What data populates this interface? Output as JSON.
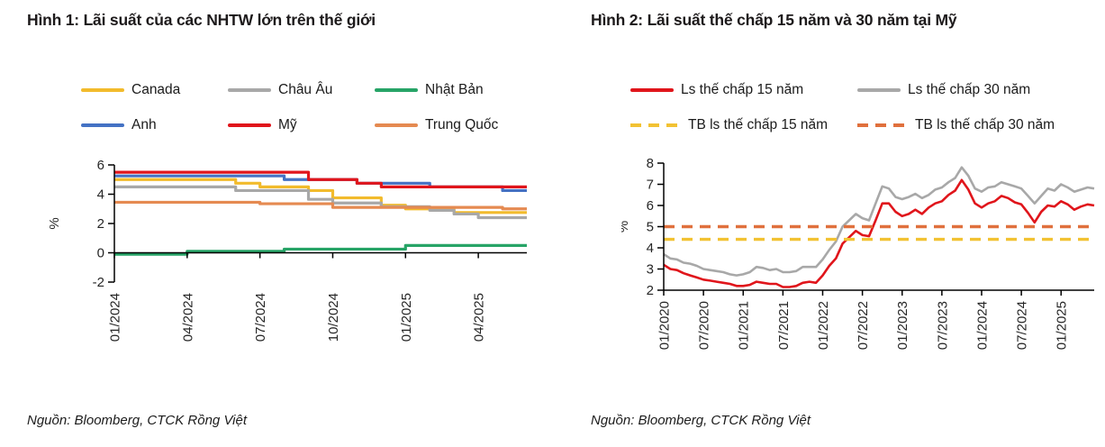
{
  "figures": [
    {
      "title": "Hình 1: Lãi suất của các NHTW lớn trên thế giới",
      "source": "Nguồn: Bloomberg, CTCK Rồng Việt"
    },
    {
      "title": "Hình 2: Lãi suất thế chấp 15 năm và 30 năm tại Mỹ",
      "source": "Nguồn: Bloomberg,  CTCK Rồng Việt"
    }
  ],
  "colors": {
    "canada": "#f2bb2c",
    "europe": "#a8a8a8",
    "japan": "#27a467",
    "uk": "#4472c4",
    "us": "#e0151b",
    "china": "#e58a51",
    "mortgage15": "#e0151b",
    "mortgage30": "#a8a8a8",
    "avg15": "#f2c233",
    "avg30": "#e0703d",
    "axis": "#000000"
  },
  "chart_data": [
    {
      "type": "line",
      "step": true,
      "title": "Hình 1: Lãi suất của các NHTW lớn trên thế giới",
      "xlabel": "",
      "ylabel": "%",
      "ylim": [
        -2,
        6
      ],
      "yticks": [
        6,
        4,
        2,
        0,
        -2
      ],
      "x_axis_at": 0,
      "grid": false,
      "legend_position": "top",
      "xtick_every": 3,
      "x": [
        "01/2024",
        "02/2024",
        "03/2024",
        "04/2024",
        "05/2024",
        "06/2024",
        "07/2024",
        "08/2024",
        "09/2024",
        "10/2024",
        "11/2024",
        "12/2024",
        "01/2025",
        "02/2025",
        "03/2025",
        "04/2025",
        "05/2025",
        "06/2025"
      ],
      "series": [
        {
          "name": "Canada",
          "color": "#f2bb2c",
          "style": "solid",
          "values": [
            5.0,
            5.0,
            5.0,
            5.0,
            5.0,
            4.75,
            4.5,
            4.5,
            4.25,
            3.75,
            3.75,
            3.25,
            3.0,
            3.0,
            2.75,
            2.75,
            2.75,
            2.75
          ]
        },
        {
          "name": "Châu Âu",
          "color": "#a8a8a8",
          "style": "solid",
          "values": [
            4.5,
            4.5,
            4.5,
            4.5,
            4.5,
            4.25,
            4.25,
            4.25,
            3.65,
            3.4,
            3.4,
            3.15,
            3.15,
            2.9,
            2.65,
            2.4,
            2.4,
            2.4
          ]
        },
        {
          "name": "Nhật Bản",
          "color": "#27a467",
          "style": "solid",
          "values": [
            -0.1,
            -0.1,
            -0.1,
            0.1,
            0.1,
            0.1,
            0.1,
            0.25,
            0.25,
            0.25,
            0.25,
            0.25,
            0.5,
            0.5,
            0.5,
            0.5,
            0.5,
            0.5
          ]
        },
        {
          "name": "Anh",
          "color": "#4472c4",
          "style": "solid",
          "values": [
            5.25,
            5.25,
            5.25,
            5.25,
            5.25,
            5.25,
            5.25,
            5.0,
            5.0,
            5.0,
            4.75,
            4.75,
            4.75,
            4.5,
            4.5,
            4.5,
            4.25,
            4.25
          ]
        },
        {
          "name": "Mỹ",
          "color": "#e0151b",
          "style": "solid",
          "values": [
            5.5,
            5.5,
            5.5,
            5.5,
            5.5,
            5.5,
            5.5,
            5.5,
            5.0,
            5.0,
            4.75,
            4.5,
            4.5,
            4.5,
            4.5,
            4.5,
            4.5,
            4.5
          ]
        },
        {
          "name": "Trung Quốc",
          "color": "#e58a51",
          "style": "solid",
          "values": [
            3.45,
            3.45,
            3.45,
            3.45,
            3.45,
            3.45,
            3.35,
            3.35,
            3.35,
            3.1,
            3.1,
            3.1,
            3.1,
            3.1,
            3.1,
            3.1,
            3.0,
            3.0
          ]
        }
      ]
    },
    {
      "type": "line",
      "step": false,
      "title": "Hình 2: Lãi suất thế chấp 15 năm và 30 năm tại Mỹ",
      "xlabel": "",
      "ylabel": "%",
      "ylim": [
        2,
        8
      ],
      "yticks": [
        8,
        7,
        6,
        5,
        4,
        3,
        2
      ],
      "x_axis_at": 2,
      "grid": false,
      "legend_position": "top",
      "xtick_every": 6,
      "x": [
        "01/2020",
        "02/2020",
        "03/2020",
        "04/2020",
        "05/2020",
        "06/2020",
        "07/2020",
        "08/2020",
        "09/2020",
        "10/2020",
        "11/2020",
        "12/2020",
        "01/2021",
        "02/2021",
        "03/2021",
        "04/2021",
        "05/2021",
        "06/2021",
        "07/2021",
        "08/2021",
        "09/2021",
        "10/2021",
        "11/2021",
        "12/2021",
        "01/2022",
        "02/2022",
        "03/2022",
        "04/2022",
        "05/2022",
        "06/2022",
        "07/2022",
        "08/2022",
        "09/2022",
        "10/2022",
        "11/2022",
        "12/2022",
        "01/2023",
        "02/2023",
        "03/2023",
        "04/2023",
        "05/2023",
        "06/2023",
        "07/2023",
        "08/2023",
        "09/2023",
        "10/2023",
        "11/2023",
        "12/2023",
        "01/2024",
        "02/2024",
        "03/2024",
        "04/2024",
        "05/2024",
        "06/2024",
        "07/2024",
        "08/2024",
        "09/2024",
        "10/2024",
        "11/2024",
        "12/2024",
        "01/2025",
        "02/2025",
        "03/2025",
        "04/2025",
        "05/2025",
        "06/2025"
      ],
      "series": [
        {
          "name": "Ls thế chấp 15 năm",
          "color": "#e0151b",
          "style": "solid",
          "values": [
            3.2,
            3.0,
            2.95,
            2.8,
            2.7,
            2.6,
            2.5,
            2.45,
            2.4,
            2.35,
            2.3,
            2.2,
            2.2,
            2.25,
            2.4,
            2.35,
            2.3,
            2.3,
            2.15,
            2.15,
            2.2,
            2.35,
            2.4,
            2.35,
            2.7,
            3.15,
            3.5,
            4.2,
            4.5,
            4.8,
            4.6,
            4.55,
            5.3,
            6.1,
            6.1,
            5.7,
            5.5,
            5.6,
            5.8,
            5.6,
            5.9,
            6.1,
            6.2,
            6.5,
            6.7,
            7.2,
            6.75,
            6.1,
            5.9,
            6.1,
            6.2,
            6.45,
            6.35,
            6.15,
            6.05,
            5.65,
            5.2,
            5.7,
            6.0,
            5.95,
            6.2,
            6.05,
            5.8,
            5.95,
            6.05,
            6.0
          ]
        },
        {
          "name": "Ls thế chấp 30 năm",
          "color": "#a8a8a8",
          "style": "solid",
          "values": [
            3.7,
            3.5,
            3.45,
            3.3,
            3.25,
            3.15,
            3.0,
            2.95,
            2.9,
            2.85,
            2.75,
            2.7,
            2.75,
            2.85,
            3.1,
            3.05,
            2.95,
            3.0,
            2.85,
            2.85,
            2.9,
            3.1,
            3.1,
            3.1,
            3.45,
            3.9,
            4.3,
            5.0,
            5.3,
            5.6,
            5.4,
            5.3,
            6.1,
            6.9,
            6.8,
            6.4,
            6.3,
            6.4,
            6.55,
            6.35,
            6.5,
            6.75,
            6.85,
            7.1,
            7.3,
            7.8,
            7.4,
            6.8,
            6.65,
            6.85,
            6.9,
            7.1,
            7.0,
            6.9,
            6.8,
            6.45,
            6.1,
            6.45,
            6.8,
            6.7,
            7.0,
            6.85,
            6.65,
            6.75,
            6.85,
            6.8
          ]
        },
        {
          "name": "TB ls thế chấp 15 năm",
          "color": "#f2c233",
          "style": "dashed",
          "avg_value": 4.4
        },
        {
          "name": "TB ls thế chấp 30 năm",
          "color": "#e0703d",
          "style": "dashed",
          "avg_value": 5.0
        }
      ]
    }
  ]
}
